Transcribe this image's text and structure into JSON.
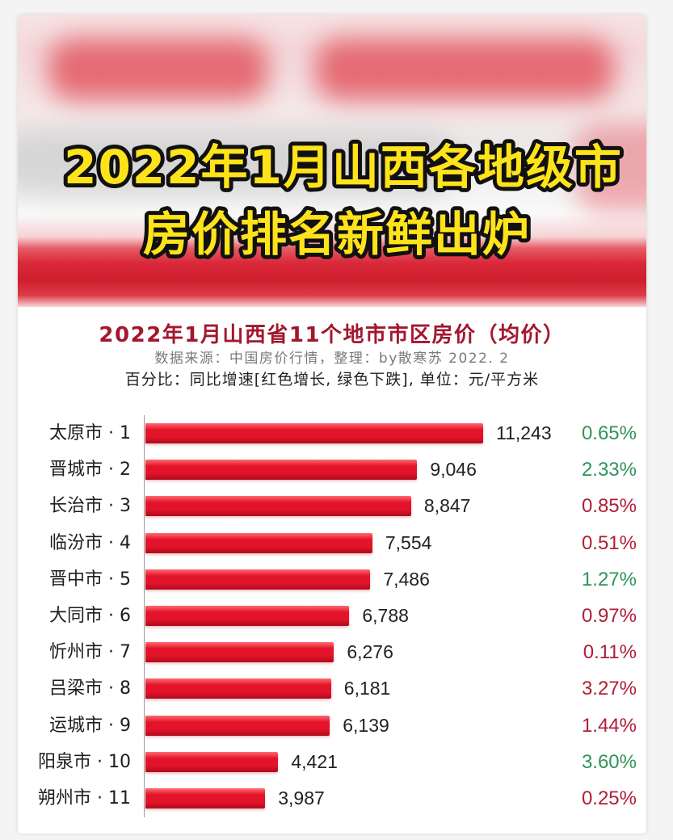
{
  "banner": {
    "headline_line1": "2022年1月山西各地级市",
    "headline_line2": "房价排名新鲜出炉"
  },
  "chart_data": {
    "type": "bar",
    "orientation": "horizontal",
    "title": "2022年1月山西省11个地市市区房价（均价）",
    "source": "数据来源：中国房价行情，整理：by散寒苏 2022. 2",
    "note": "百分比：同比增速[红色增长, 绿色下跌], 单位：元/平方米",
    "categories": [
      "太原市 · 1",
      "晋城市 · 2",
      "长治市 · 3",
      "临汾市 · 4",
      "晋中市 · 5",
      "大同市 · 6",
      "忻州市 · 7",
      "吕梁市 · 8",
      "运城市 · 9",
      "阳泉市 · 10",
      "朔州市 · 11"
    ],
    "values": [
      11243,
      9046,
      8847,
      7554,
      7486,
      6788,
      6276,
      6181,
      6139,
      4421,
      3987
    ],
    "yoy_growth": [
      "0.65%",
      "2.33%",
      "0.85%",
      "0.51%",
      "1.27%",
      "0.97%",
      "0.11%",
      "3.27%",
      "1.44%",
      "3.60%",
      "0.25%"
    ],
    "yoy_trend": [
      "down",
      "down",
      "up",
      "up",
      "down",
      "up",
      "up",
      "up",
      "up",
      "down",
      "up"
    ],
    "xlim": [
      0,
      11243
    ],
    "grid": false,
    "legend": "none"
  },
  "colors": {
    "headline_fill": "#ffe31a",
    "headline_stroke": "#111111",
    "title": "#a3172d",
    "bar_top": "#ff6a72",
    "bar": "#e3142a",
    "bar_bottom": "#b00a1c",
    "growth_up": "#b01e37",
    "growth_down": "#2f9459"
  }
}
